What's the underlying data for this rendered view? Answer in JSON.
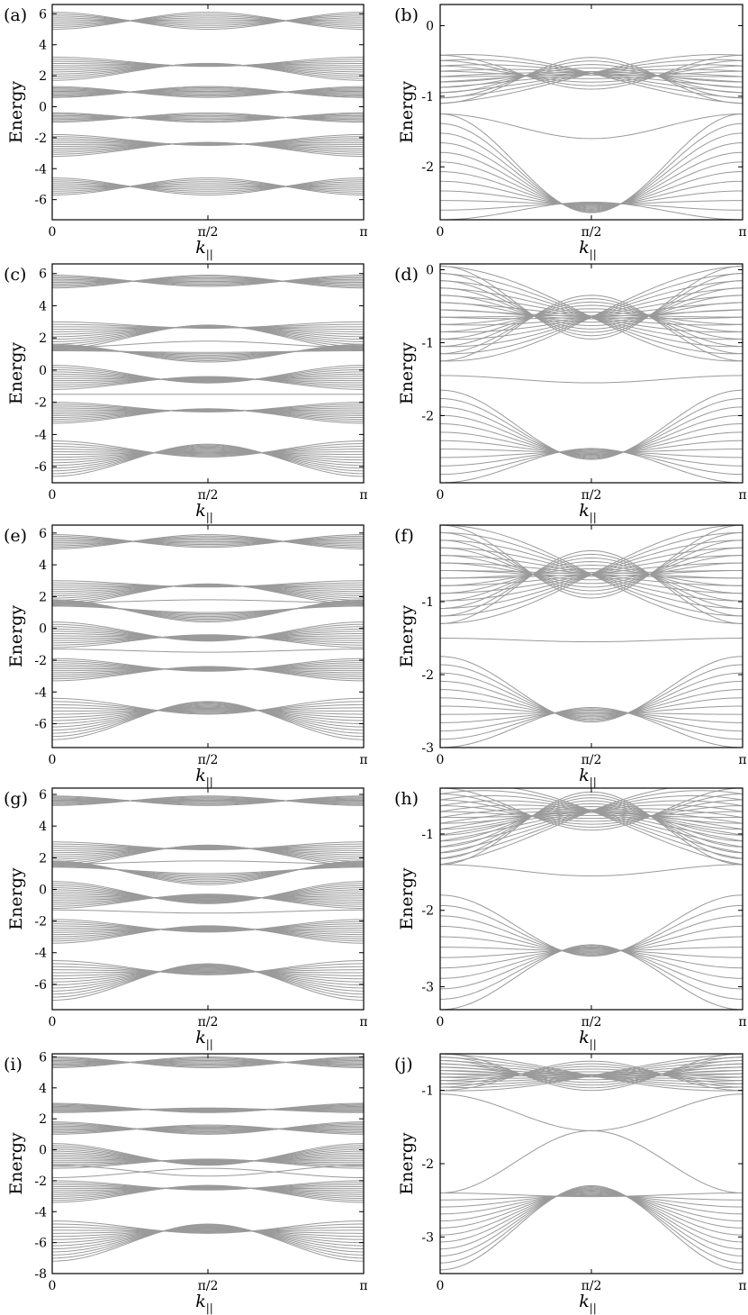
{
  "figure": {
    "common": {
      "ylabel": "Energy",
      "xlabel_main": "k",
      "xlabel_sub": "||",
      "x_ticks": [
        "0",
        "π/2",
        "π"
      ],
      "line_color": "#9a9a9a",
      "frame_color": "#000000"
    }
  },
  "chart_data": [
    {
      "panel": "(a)",
      "type": "line",
      "xlabel": "k||",
      "ylabel": "Energy",
      "x_ticks": [
        "0",
        "π/2",
        "π"
      ],
      "xlim": [
        0,
        3.1416
      ],
      "ylim": [
        -7.3,
        6.6
      ],
      "y_ticks": [
        6,
        4,
        2,
        0,
        -2,
        -4,
        -6
      ],
      "grid": false,
      "band_groups": [
        {
          "edge": [
            5.0,
            6.1
          ],
          "center": [
            5.0,
            6.1
          ],
          "n": 10
        },
        {
          "edge": [
            1.7,
            3.2
          ],
          "center": [
            2.6,
            2.8
          ],
          "n": 12
        },
        {
          "edge": [
            0.6,
            1.3
          ],
          "center": [
            0.6,
            1.3
          ],
          "n": 10
        },
        {
          "edge": [
            -1.0,
            -0.4
          ],
          "center": [
            -1.0,
            -0.4
          ],
          "n": 8
        },
        {
          "edge": [
            -3.2,
            -1.8
          ],
          "center": [
            -2.5,
            -2.3
          ],
          "n": 12
        },
        {
          "edge": [
            -5.7,
            -4.6
          ],
          "center": [
            -5.7,
            -4.6
          ],
          "n": 10
        }
      ],
      "single_bands": [
        {
          "edge": 0.6,
          "center": 1.3
        },
        {
          "edge": -0.4,
          "center": -1.0
        }
      ]
    },
    {
      "panel": "(b)",
      "type": "line",
      "xlabel": "k||",
      "ylabel": "Energy",
      "x_ticks": [
        "0",
        "π/2",
        "π"
      ],
      "xlim": [
        0,
        3.1416
      ],
      "ylim": [
        -2.75,
        0.3
      ],
      "y_ticks": [
        0,
        -1,
        -2
      ],
      "grid": false,
      "band_groups": [
        {
          "edge": [
            -1.1,
            -0.42
          ],
          "center": [
            -0.9,
            -0.45
          ],
          "n": 10,
          "cross": true
        },
        {
          "edge": [
            -2.75,
            -1.25
          ],
          "center": [
            -2.65,
            -2.5
          ],
          "n": 12
        }
      ],
      "single_bands": [
        {
          "edge": -1.25,
          "center": -1.6
        }
      ]
    },
    {
      "panel": "(c)",
      "type": "line",
      "xlabel": "k||",
      "ylabel": "Energy",
      "x_ticks": [
        "0",
        "π/2",
        "π"
      ],
      "xlim": [
        0,
        3.1416
      ],
      "ylim": [
        -7.0,
        6.6
      ],
      "y_ticks": [
        6,
        4,
        2,
        0,
        -2,
        -4,
        -6
      ],
      "grid": false,
      "band_groups": [
        {
          "edge": [
            5.1,
            5.9
          ],
          "center": [
            5.2,
            5.9
          ],
          "n": 10
        },
        {
          "edge": [
            1.3,
            3.0
          ],
          "center": [
            2.6,
            2.8
          ],
          "n": 12
        },
        {
          "edge": [
            1.2,
            1.6
          ],
          "center": [
            0.5,
            1.1
          ],
          "n": 8
        },
        {
          "edge": [
            -1.2,
            0.3
          ],
          "center": [
            -0.8,
            -0.4
          ],
          "n": 12
        },
        {
          "edge": [
            -3.3,
            -2.0
          ],
          "center": [
            -2.6,
            -2.4
          ],
          "n": 12
        },
        {
          "edge": [
            -6.6,
            -4.4
          ],
          "center": [
            -5.4,
            -4.6
          ],
          "n": 14
        }
      ],
      "single_bands": [
        {
          "edge": 1.4,
          "center": 1.8
        },
        {
          "edge": -1.5,
          "center": -1.5
        }
      ]
    },
    {
      "panel": "(d)",
      "type": "line",
      "xlabel": "k||",
      "ylabel": "Energy",
      "x_ticks": [
        "0",
        "π/2",
        "π"
      ],
      "xlim": [
        0,
        3.1416
      ],
      "ylim": [
        -2.92,
        0.08
      ],
      "y_ticks": [
        0,
        -1,
        -2
      ],
      "grid": false,
      "band_groups": [
        {
          "edge": [
            -1.25,
            0.05
          ],
          "center": [
            -0.95,
            -0.35
          ],
          "n": 14,
          "cross": true
        },
        {
          "edge": [
            -2.92,
            -1.65
          ],
          "center": [
            -2.6,
            -2.45
          ],
          "n": 12
        }
      ],
      "single_bands": [
        {
          "edge": -1.45,
          "center": -1.55
        }
      ]
    },
    {
      "panel": "(e)",
      "type": "line",
      "xlabel": "k||",
      "ylabel": "Energy",
      "x_ticks": [
        "0",
        "π/2",
        "π"
      ],
      "xlim": [
        0,
        3.1416
      ],
      "ylim": [
        -7.5,
        6.5
      ],
      "y_ticks": [
        6,
        4,
        2,
        0,
        -2,
        -4,
        -6
      ],
      "grid": false,
      "band_groups": [
        {
          "edge": [
            5.0,
            5.9
          ],
          "center": [
            5.1,
            5.9
          ],
          "n": 10
        },
        {
          "edge": [
            1.5,
            3.0
          ],
          "center": [
            2.6,
            2.8
          ],
          "n": 12
        },
        {
          "edge": [
            1.4,
            1.8
          ],
          "center": [
            0.4,
            1.0
          ],
          "n": 8
        },
        {
          "edge": [
            -1.2,
            0.4
          ],
          "center": [
            -0.8,
            -0.4
          ],
          "n": 12
        },
        {
          "edge": [
            -3.3,
            -1.9
          ],
          "center": [
            -2.7,
            -2.4
          ],
          "n": 12
        },
        {
          "edge": [
            -7.0,
            -4.4
          ],
          "center": [
            -5.4,
            -4.6
          ],
          "n": 14
        }
      ],
      "single_bands": [
        {
          "edge": 1.6,
          "center": 1.8
        },
        {
          "edge": -1.3,
          "center": -1.5
        }
      ]
    },
    {
      "panel": "(f)",
      "type": "line",
      "xlabel": "k||",
      "ylabel": "Energy",
      "x_ticks": [
        "0",
        "π/2",
        "π"
      ],
      "xlim": [
        0,
        3.1416
      ],
      "ylim": [
        -3.0,
        0.05
      ],
      "y_ticks": [
        -1,
        -2,
        -3
      ],
      "grid": false,
      "band_groups": [
        {
          "edge": [
            -1.3,
            0.05
          ],
          "center": [
            -0.95,
            -0.3
          ],
          "n": 14,
          "cross": true
        },
        {
          "edge": [
            -3.0,
            -1.75
          ],
          "center": [
            -2.65,
            -2.45
          ],
          "n": 12
        }
      ],
      "single_bands": [
        {
          "edge": -1.5,
          "center": -1.55
        }
      ]
    },
    {
      "panel": "(g)",
      "type": "line",
      "xlabel": "k||",
      "ylabel": "Energy",
      "x_ticks": [
        "0",
        "π/2",
        "π"
      ],
      "xlim": [
        0,
        3.1416
      ],
      "ylim": [
        -7.6,
        6.4
      ],
      "y_ticks": [
        6,
        4,
        2,
        0,
        -2,
        -4,
        -6
      ],
      "grid": false,
      "band_groups": [
        {
          "edge": [
            5.3,
            5.9
          ],
          "center": [
            5.3,
            5.9
          ],
          "n": 10
        },
        {
          "edge": [
            1.5,
            3.0
          ],
          "center": [
            2.5,
            2.8
          ],
          "n": 12
        },
        {
          "edge": [
            1.4,
            1.8
          ],
          "center": [
            0.3,
            1.0
          ],
          "n": 8
        },
        {
          "edge": [
            -1.2,
            0.5
          ],
          "center": [
            -0.9,
            -0.3
          ],
          "n": 14
        },
        {
          "edge": [
            -3.4,
            -1.9
          ],
          "center": [
            -2.7,
            -2.3
          ],
          "n": 12
        },
        {
          "edge": [
            -7.0,
            -4.5
          ],
          "center": [
            -5.4,
            -4.7
          ],
          "n": 14
        }
      ],
      "single_bands": [
        {
          "edge": 1.6,
          "center": 1.8
        },
        {
          "edge": -1.3,
          "center": -1.5
        }
      ]
    },
    {
      "panel": "(h)",
      "type": "line",
      "xlabel": "k||",
      "ylabel": "Energy",
      "x_ticks": [
        "0",
        "π/2",
        "π"
      ],
      "xlim": [
        0,
        3.1416
      ],
      "ylim": [
        -3.3,
        -0.4
      ],
      "y_ticks": [
        -1,
        -2,
        -3
      ],
      "grid": false,
      "band_groups": [
        {
          "edge": [
            -1.4,
            -0.4
          ],
          "center": [
            -0.95,
            -0.45
          ],
          "n": 14,
          "cross": true
        },
        {
          "edge": [
            -3.3,
            -1.8
          ],
          "center": [
            -2.6,
            -2.45
          ],
          "n": 12
        }
      ],
      "single_bands": [
        {
          "edge": -1.4,
          "center": -1.55
        }
      ]
    },
    {
      "panel": "(i)",
      "type": "line",
      "xlabel": "k||",
      "ylabel": "Energy",
      "x_ticks": [
        "0",
        "π/2",
        "π"
      ],
      "xlim": [
        0,
        3.1416
      ],
      "ylim": [
        -8.0,
        6.2
      ],
      "y_ticks": [
        6,
        4,
        2,
        0,
        -2,
        -4,
        -6,
        -8
      ],
      "grid": false,
      "band_groups": [
        {
          "edge": [
            5.3,
            6.0
          ],
          "center": [
            5.3,
            6.0
          ],
          "n": 10
        },
        {
          "edge": [
            2.4,
            3.0
          ],
          "center": [
            2.4,
            2.7
          ],
          "n": 10
        },
        {
          "edge": [
            1.0,
            1.8
          ],
          "center": [
            1.0,
            1.6
          ],
          "n": 10
        },
        {
          "edge": [
            -1.2,
            0.4
          ],
          "center": [
            -1.0,
            -0.6
          ],
          "n": 14
        },
        {
          "edge": [
            -3.4,
            -2.0
          ],
          "center": [
            -2.6,
            -2.3
          ],
          "n": 12
        },
        {
          "edge": [
            -7.2,
            -4.6
          ],
          "center": [
            -5.4,
            -4.8
          ],
          "n": 14
        }
      ],
      "single_bands": [
        {
          "edge": -1.0,
          "center": -1.7
        },
        {
          "edge": -1.8,
          "center": -1.2
        }
      ]
    },
    {
      "panel": "(j)",
      "type": "line",
      "xlabel": "k||",
      "ylabel": "Energy",
      "x_ticks": [
        "0",
        "π/2",
        "π"
      ],
      "xlim": [
        0,
        3.1416
      ],
      "ylim": [
        -3.5,
        -0.5
      ],
      "y_ticks": [
        -1,
        -2,
        -3
      ],
      "grid": false,
      "band_groups": [
        {
          "edge": [
            -1.0,
            -0.5
          ],
          "center": [
            -1.0,
            -0.6
          ],
          "n": 12,
          "cross": true
        },
        {
          "edge": [
            -3.45,
            -2.4
          ],
          "center": [
            -2.45,
            -2.3
          ],
          "n": 12
        }
      ],
      "single_bands": [
        {
          "edge": -2.4,
          "center": -1.55
        },
        {
          "edge": -1.05,
          "center": -1.55
        }
      ]
    }
  ]
}
